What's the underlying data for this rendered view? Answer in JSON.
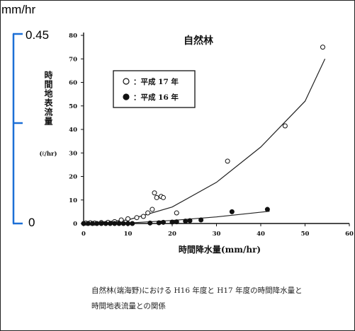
{
  "annotation": {
    "unit_label": "mm/hr",
    "bracket_top": "0.45",
    "bracket_bottom": "0",
    "bracket_color": "#1c6fd6"
  },
  "chart_data": {
    "type": "scatter",
    "title": "自然林",
    "xlabel": "時間降水量(mm/hr)",
    "ylabel": "時間地表流量",
    "ylabel_unit": "(ℓ/hr)",
    "xlim": [
      0,
      60
    ],
    "ylim": [
      0,
      80
    ],
    "x_ticks": [
      "0",
      "10",
      "20",
      "30",
      "40",
      "50",
      "60"
    ],
    "y_ticks": [
      "0",
      "10",
      "20",
      "30",
      "40",
      "50",
      "60",
      "70",
      "80"
    ],
    "grid": false,
    "legend_position": "top-left",
    "series": [
      {
        "name": "：平成 17 年",
        "marker": "open-circle",
        "points": [
          [
            0.5,
            0.2
          ],
          [
            1.5,
            0.3
          ],
          [
            2.5,
            0.2
          ],
          [
            4,
            0.4
          ],
          [
            5.5,
            0.5
          ],
          [
            7,
            0.8
          ],
          [
            8.5,
            1.5
          ],
          [
            10,
            2
          ],
          [
            12,
            2.5
          ],
          [
            13.5,
            3
          ],
          [
            14.5,
            4.5
          ],
          [
            15.5,
            6
          ],
          [
            16,
            13
          ],
          [
            16.5,
            11
          ],
          [
            17.5,
            11.5
          ],
          [
            18,
            11
          ],
          [
            21,
            4.5
          ],
          [
            32.5,
            26.5
          ],
          [
            45.5,
            41.5
          ],
          [
            54,
            75
          ]
        ],
        "trend": [
          [
            0,
            0
          ],
          [
            10,
            1.5
          ],
          [
            20,
            7
          ],
          [
            30,
            17.5
          ],
          [
            40,
            32.5
          ],
          [
            50,
            52
          ],
          [
            54.5,
            70
          ]
        ]
      },
      {
        "name": "：平成 16 年",
        "marker": "filled-circle",
        "points": [
          [
            0,
            0
          ],
          [
            1,
            0
          ],
          [
            2,
            0
          ],
          [
            3,
            0
          ],
          [
            4,
            0
          ],
          [
            5,
            0
          ],
          [
            6,
            0
          ],
          [
            7,
            0
          ],
          [
            8,
            0
          ],
          [
            9,
            0
          ],
          [
            10,
            0
          ],
          [
            11,
            0
          ],
          [
            15,
            0.2
          ],
          [
            17,
            0.3
          ],
          [
            18,
            0.5
          ],
          [
            20,
            0.6
          ],
          [
            21,
            0.7
          ],
          [
            23,
            1
          ],
          [
            24,
            1.2
          ],
          [
            26.5,
            1.5
          ],
          [
            33.5,
            5
          ],
          [
            41.5,
            6
          ]
        ],
        "trend": [
          [
            0,
            0
          ],
          [
            10,
            0.2
          ],
          [
            20,
            1.3
          ],
          [
            30,
            2.8
          ],
          [
            42,
            5.2
          ]
        ]
      }
    ]
  },
  "caption": {
    "line1": "自然林(端海野)における H16 年度と H17 年度の時間降水量と",
    "line2": "時間地表流量との関係"
  }
}
